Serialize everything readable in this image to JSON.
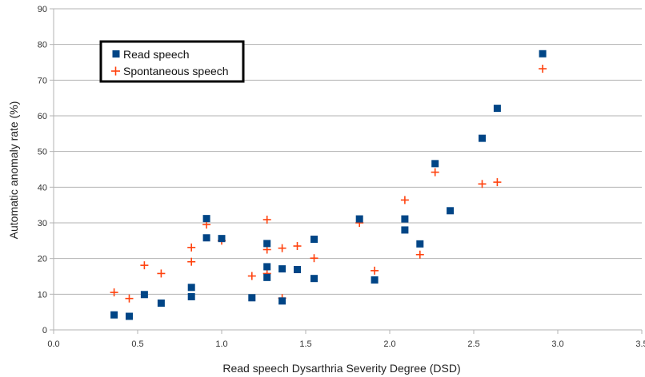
{
  "chart_data": {
    "type": "scatter",
    "title": "",
    "xlabel": "Read speech Dysarthria Severity Degree (DSD)",
    "ylabel": "Automatic anomaly rate (%)",
    "xlim": [
      0,
      3.5
    ],
    "ylim": [
      0,
      90
    ],
    "x_ticks": [
      "0.0",
      "0.5",
      "1.0",
      "1.5",
      "2.0",
      "2.5",
      "3.0",
      "3.5"
    ],
    "y_ticks": [
      "0",
      "10",
      "20",
      "30",
      "40",
      "50",
      "60",
      "70",
      "80",
      "90"
    ],
    "grid": "horizontal",
    "legend_position": "top-left",
    "series": [
      {
        "name": "Read speech",
        "marker": "square",
        "color": "#004586",
        "points": [
          [
            0.36,
            4.2
          ],
          [
            0.45,
            3.8
          ],
          [
            0.54,
            9.9
          ],
          [
            0.64,
            7.5
          ],
          [
            0.82,
            11.9
          ],
          [
            0.82,
            9.3
          ],
          [
            0.91,
            31.2
          ],
          [
            0.91,
            25.8
          ],
          [
            1.0,
            25.6
          ],
          [
            1.18,
            9.0
          ],
          [
            1.27,
            24.2
          ],
          [
            1.27,
            17.7
          ],
          [
            1.27,
            14.7
          ],
          [
            1.36,
            17.1
          ],
          [
            1.36,
            8.1
          ],
          [
            1.45,
            16.9
          ],
          [
            1.55,
            25.4
          ],
          [
            1.55,
            14.4
          ],
          [
            1.82,
            31.1
          ],
          [
            1.91,
            14.0
          ],
          [
            2.09,
            31.1
          ],
          [
            2.09,
            28.0
          ],
          [
            2.18,
            24.1
          ],
          [
            2.27,
            46.6
          ],
          [
            2.36,
            33.4
          ],
          [
            2.55,
            53.7
          ],
          [
            2.64,
            62.1
          ],
          [
            2.91,
            77.4
          ]
        ]
      },
      {
        "name": "Spontaneous speech",
        "marker": "plus",
        "color": "#ff420e",
        "points": [
          [
            0.36,
            10.5
          ],
          [
            0.45,
            8.8
          ],
          [
            0.54,
            18.1
          ],
          [
            0.64,
            15.8
          ],
          [
            0.82,
            23.1
          ],
          [
            0.82,
            19.1
          ],
          [
            0.91,
            29.5
          ],
          [
            1.0,
            25.0
          ],
          [
            1.18,
            15.1
          ],
          [
            1.27,
            30.9
          ],
          [
            1.27,
            22.5
          ],
          [
            1.27,
            15.8
          ],
          [
            1.36,
            22.9
          ],
          [
            1.36,
            8.9
          ],
          [
            1.45,
            23.5
          ],
          [
            1.55,
            20.1
          ],
          [
            1.82,
            30.0
          ],
          [
            1.91,
            16.6
          ],
          [
            2.09,
            36.4
          ],
          [
            2.18,
            21.1
          ],
          [
            2.27,
            44.2
          ],
          [
            2.55,
            40.9
          ],
          [
            2.64,
            41.4
          ],
          [
            2.91,
            73.2
          ]
        ]
      }
    ]
  }
}
